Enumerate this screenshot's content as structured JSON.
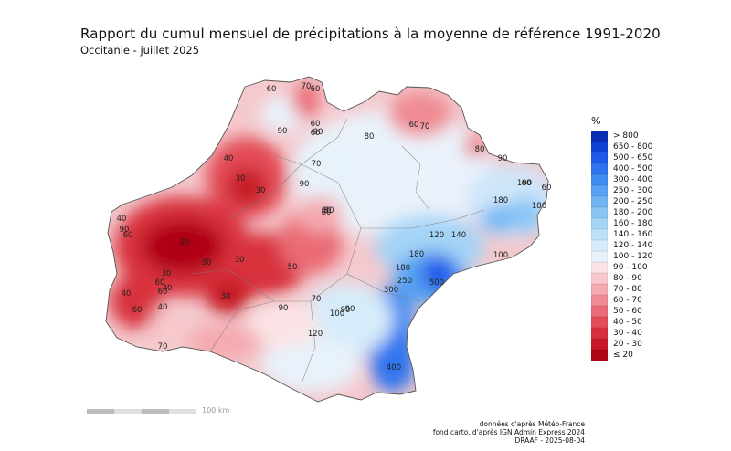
{
  "title": "Rapport du cumul mensuel de précipitations à la moyenne de référence 1991-2020",
  "subtitle": "Occitanie - juillet 2025",
  "legend": {
    "unit": "%",
    "classes": [
      {
        "label": "> 800",
        "color": "#0a2db5"
      },
      {
        "label": "650 - 800",
        "color": "#1142d6"
      },
      {
        "label": "500 - 650",
        "color": "#1e5ae8"
      },
      {
        "label": "400 - 500",
        "color": "#2f74ee"
      },
      {
        "label": "300 - 400",
        "color": "#3f8cf0"
      },
      {
        "label": "250 - 300",
        "color": "#57a2f2"
      },
      {
        "label": "200 - 250",
        "color": "#6fb5f4"
      },
      {
        "label": "180 - 200",
        "color": "#8ac6f5"
      },
      {
        "label": "160 - 180",
        "color": "#a5d4f7"
      },
      {
        "label": "140 - 160",
        "color": "#bfe1f8"
      },
      {
        "label": "120 - 140",
        "color": "#d6ecfa"
      },
      {
        "label": "100 - 120",
        "color": "#e8f2fb"
      },
      {
        "label": "90 - 100",
        "color": "#fbe3e5"
      },
      {
        "label": "80 - 90",
        "color": "#f8c8cc"
      },
      {
        "label": "70 - 80",
        "color": "#f4aab0"
      },
      {
        "label": "60 - 70",
        "color": "#ef8b93"
      },
      {
        "label": "50 - 60",
        "color": "#ea6b75"
      },
      {
        "label": "40 - 50",
        "color": "#e34b57"
      },
      {
        "label": "30 - 40",
        "color": "#d8313d"
      },
      {
        "label": "20 - 30",
        "color": "#c81a26"
      },
      {
        "label": "≤ 20",
        "color": "#b00512"
      }
    ]
  },
  "scale_label": "100 km",
  "credits": [
    "données d'après Météo-France",
    "fond carto. d'après IGN Admin Express 2024",
    "DRAAF - 2025-08-04"
  ],
  "contour_labels": [
    "60",
    "70",
    "60",
    "80",
    "90",
    "60",
    "70",
    "60",
    "80",
    "70",
    "40",
    "30",
    "30",
    "90",
    "80",
    "90",
    "60",
    "60",
    "180",
    "100",
    "90",
    "40",
    "60",
    "20",
    "30",
    "30",
    "50",
    "80",
    "80",
    "180",
    "120",
    "140",
    "100",
    "180",
    "90",
    "40",
    "250",
    "500",
    "60",
    "30",
    "70",
    "90",
    "300",
    "100",
    "60",
    "70",
    "120",
    "90",
    "400",
    "180",
    "40",
    "30",
    "60",
    "40",
    "90",
    "60"
  ]
}
